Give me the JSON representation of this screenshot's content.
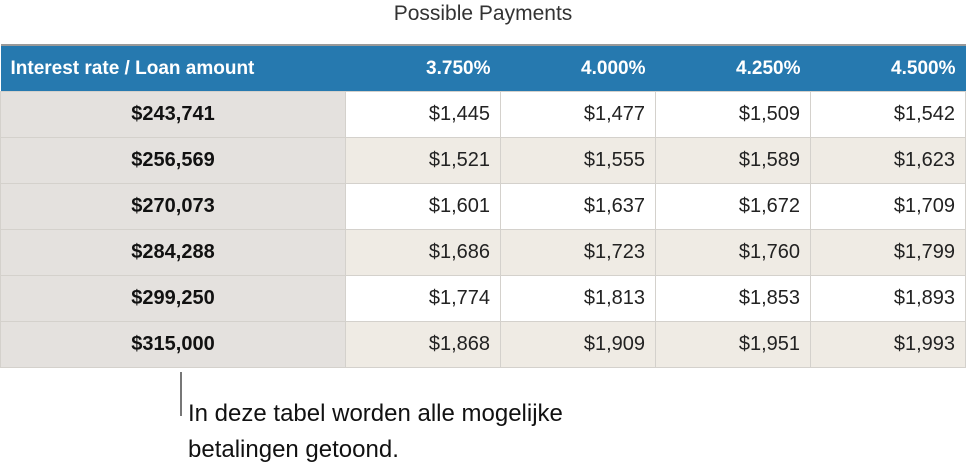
{
  "title": "Possible Payments",
  "table": {
    "corner": "Interest rate / Loan amount",
    "columns": [
      "3.750%",
      "4.000%",
      "4.250%",
      "4.500%"
    ],
    "rows": [
      {
        "amount": "$243,741",
        "values": [
          "$1,445",
          "$1,477",
          "$1,509",
          "$1,542"
        ]
      },
      {
        "amount": "$256,569",
        "values": [
          "$1,521",
          "$1,555",
          "$1,589",
          "$1,623"
        ]
      },
      {
        "amount": "$270,073",
        "values": [
          "$1,601",
          "$1,637",
          "$1,672",
          "$1,709"
        ]
      },
      {
        "amount": "$284,288",
        "values": [
          "$1,686",
          "$1,723",
          "$1,760",
          "$1,799"
        ]
      },
      {
        "amount": "$299,250",
        "values": [
          "$1,774",
          "$1,813",
          "$1,853",
          "$1,893"
        ]
      },
      {
        "amount": "$315,000",
        "values": [
          "$1,868",
          "$1,909",
          "$1,951",
          "$1,993"
        ]
      }
    ]
  },
  "callout": "In deze tabel worden alle mogelijke betalingen getoond.",
  "colors": {
    "header": "#2679af",
    "row_header": "#e4e1de",
    "alt_row": "#efebe4"
  }
}
